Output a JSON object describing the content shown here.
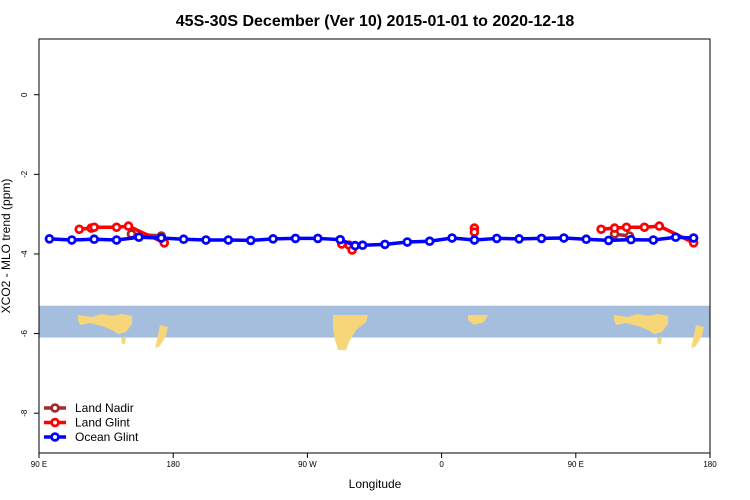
{
  "chart_data": {
    "type": "line",
    "title": "45S-30S December (Ver 10)   2015-01-01 to 2020-12-18",
    "xlabel": "Longitude",
    "ylabel": "XCO2 - MLO trend (ppm)",
    "xlim": [
      90,
      540
    ],
    "ylim": [
      -9,
      1.4
    ],
    "x_ticks": [
      {
        "value": 90,
        "label": "90 E"
      },
      {
        "value": 180,
        "label": "180"
      },
      {
        "value": 270,
        "label": "90 W"
      },
      {
        "value": 360,
        "label": "0"
      },
      {
        "value": 450,
        "label": "90 E"
      },
      {
        "value": 540,
        "label": "180"
      }
    ],
    "y_ticks": [
      {
        "value": 0,
        "label": "0"
      },
      {
        "value": -2,
        "label": "-2"
      },
      {
        "value": -4,
        "label": "-4"
      },
      {
        "value": -6,
        "label": "-6"
      },
      {
        "value": -8,
        "label": "-8"
      }
    ],
    "map_band": {
      "y_top": -5.3,
      "y_bottom": -6.1,
      "ocean_color": "#a6bedd",
      "land_color": "#f7d67a"
    },
    "legend_position": "bottom-left",
    "series": [
      {
        "name": "Land Nadir",
        "color": "#a52a2a",
        "segments": [
          [
            [
              152,
              -3.5
            ],
            [
              172,
              -3.55
            ]
          ],
          [
            [
              476,
              -3.5
            ],
            [
              486,
              -3.55
            ]
          ]
        ]
      },
      {
        "name": "Land Glint",
        "color": "#ff0000",
        "segments": [
          [
            [
              117,
              -3.38
            ],
            [
              125,
              -3.35
            ],
            [
              127,
              -3.33
            ],
            [
              142,
              -3.33
            ],
            [
              150,
              -3.3
            ],
            [
              174,
              -3.72
            ]
          ],
          [
            [
              293,
              -3.75
            ],
            [
              298,
              -3.78
            ],
            [
              300,
              -3.9
            ]
          ],
          [
            [
              382,
              -3.35
            ],
            [
              382,
              -3.45
            ]
          ],
          [
            [
              467,
              -3.38
            ],
            [
              476,
              -3.35
            ],
            [
              484,
              -3.33
            ],
            [
              496,
              -3.33
            ],
            [
              506,
              -3.3
            ],
            [
              529,
              -3.72
            ]
          ]
        ]
      },
      {
        "name": "Ocean Glint",
        "color": "#0000ff",
        "segments": [
          [
            [
              97,
              -3.62
            ],
            [
              112,
              -3.65
            ],
            [
              127,
              -3.63
            ],
            [
              142,
              -3.65
            ],
            [
              157,
              -3.58
            ],
            [
              172,
              -3.6
            ],
            [
              187,
              -3.63
            ],
            [
              202,
              -3.65
            ],
            [
              217,
              -3.65
            ],
            [
              232,
              -3.66
            ],
            [
              247,
              -3.62
            ],
            [
              262,
              -3.61
            ],
            [
              277,
              -3.61
            ],
            [
              292,
              -3.64
            ],
            [
              302,
              -3.79
            ],
            [
              307,
              -3.78
            ],
            [
              322,
              -3.76
            ],
            [
              337,
              -3.7
            ],
            [
              352,
              -3.68
            ],
            [
              367,
              -3.6
            ],
            [
              382,
              -3.65
            ],
            [
              397,
              -3.61
            ],
            [
              412,
              -3.62
            ],
            [
              427,
              -3.61
            ],
            [
              442,
              -3.6
            ],
            [
              457,
              -3.63
            ],
            [
              472,
              -3.66
            ],
            [
              487,
              -3.64
            ],
            [
              502,
              -3.65
            ],
            [
              517,
              -3.58
            ],
            [
              529,
              -3.6
            ]
          ]
        ]
      }
    ]
  }
}
